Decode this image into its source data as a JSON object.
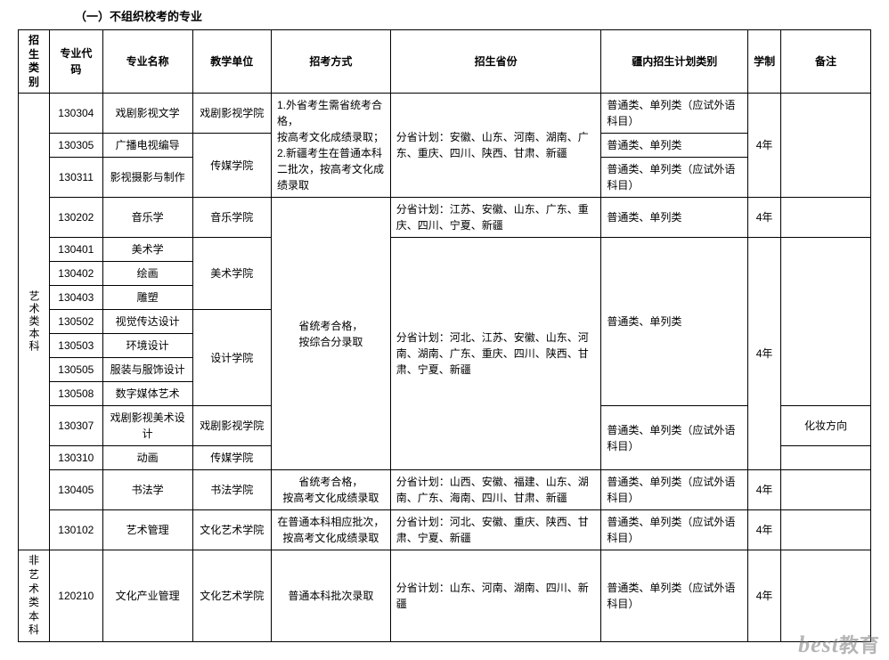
{
  "title": "（一）不组织校考的专业",
  "headers": {
    "cat": "招生\n类别",
    "code": "专业代码",
    "major": "专业名称",
    "unit": "教学单位",
    "method": "招考方式",
    "province": "招生省份",
    "plan": "疆内招生计划类别",
    "years": "学制",
    "note": "备注"
  },
  "cat": {
    "art": "艺术类本科",
    "nonart": "非艺术类本科"
  },
  "rows": {
    "r1": {
      "code": "130304",
      "major": "戏剧影视文学",
      "unit": "戏剧影视学院"
    },
    "r2": {
      "code": "130305",
      "major": "广播电视编导"
    },
    "r3": {
      "code": "130311",
      "major": "影视摄影与制作"
    },
    "r4": {
      "code": "130202",
      "major": "音乐学",
      "unit": "音乐学院"
    },
    "r5": {
      "code": "130401",
      "major": "美术学"
    },
    "r6": {
      "code": "130402",
      "major": "绘画"
    },
    "r7": {
      "code": "130403",
      "major": "雕塑"
    },
    "r8": {
      "code": "130502",
      "major": "视觉传达设计"
    },
    "r9": {
      "code": "130503",
      "major": "环境设计"
    },
    "r10": {
      "code": "130505",
      "major": "服装与服饰设计"
    },
    "r11": {
      "code": "130508",
      "major": "数字媒体艺术"
    },
    "r12": {
      "code": "130307",
      "major": "戏剧影视美术设计",
      "unit": "戏剧影视学院"
    },
    "r13": {
      "code": "130310",
      "major": "动画",
      "unit": "传媒学院"
    },
    "r14": {
      "code": "130405",
      "major": "书法学",
      "unit": "书法学院"
    },
    "r15": {
      "code": "130102",
      "major": "艺术管理",
      "unit": "文化艺术学院"
    },
    "r16": {
      "code": "120210",
      "major": "文化产业管理",
      "unit": "文化艺术学院"
    }
  },
  "units": {
    "media": "传媒学院",
    "fineart": "美术学院",
    "design": "设计学院"
  },
  "methods": {
    "m1": "1.外省考生需省统考合格，\n按高考文化成绩录取；\n2.新疆考生在普通本科二批次，按高考文化成绩录取",
    "m2": "省统考合格，\n按综合分录取",
    "m3": "省统考合格，\n按高考文化成绩录取",
    "m4": "在普通本科相应批次，\n按高考文化成绩录取",
    "m5": "普通本科批次录取"
  },
  "provinces": {
    "p1": "分省计划：安徽、山东、河南、湖南、广东、重庆、四川、陕西、甘肃、新疆",
    "p2": "分省计划：江苏、安徽、山东、广东、重庆、四川、宁夏、新疆",
    "p3": "分省计划：河北、江苏、安徽、山东、河南、湖南、广东、重庆、四川、陕西、甘肃、宁夏、新疆",
    "p4": "分省计划：山西、安徽、福建、山东、湖南、广东、海南、四川、甘肃、新疆",
    "p5": "分省计划：河北、安徽、重庆、陕西、甘肃、宁夏、新疆",
    "p6": "分省计划：山东、河南、湖南、四川、新疆"
  },
  "plans": {
    "pl_fl": "普通类、单列类（应试外语科目）",
    "pl": "普通类、单列类"
  },
  "years": {
    "y4": "4年"
  },
  "notes": {
    "makeup": "化妆方向"
  },
  "watermark": {
    "en": "best",
    "cn": "教育"
  }
}
